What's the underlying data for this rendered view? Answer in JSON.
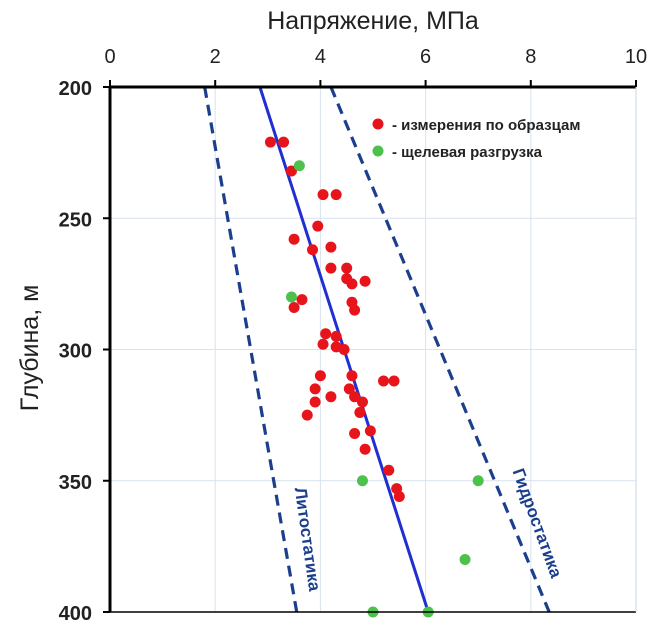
{
  "chart_data": {
    "type": "scatter",
    "xlabel": "Напряжение, МПа",
    "ylabel": "Глубина, м",
    "xlim": [
      0,
      10
    ],
    "ylim": [
      200,
      400
    ],
    "y_inverted": true,
    "x_axis_position": "top",
    "x_ticks": [
      0,
      2,
      4,
      6,
      8,
      10
    ],
    "y_ticks": [
      200,
      250,
      300,
      350,
      400
    ],
    "grid": true,
    "legend_position": "top-right",
    "colors": {
      "red": "#e8141b",
      "green": "#4cc24c",
      "trend": "#1f2fd1",
      "dashed": "#1b3f8c",
      "grid": "#d7e3ee"
    },
    "series": [
      {
        "name": "- измерения по образцам",
        "kind": "points",
        "color": "#e8141b",
        "points": [
          [
            3.05,
            221
          ],
          [
            3.3,
            221
          ],
          [
            3.45,
            232
          ],
          [
            4.05,
            241
          ],
          [
            4.3,
            241
          ],
          [
            3.95,
            253
          ],
          [
            3.5,
            258
          ],
          [
            3.85,
            262
          ],
          [
            4.2,
            261
          ],
          [
            4.2,
            269
          ],
          [
            4.5,
            269
          ],
          [
            4.5,
            273
          ],
          [
            4.6,
            275
          ],
          [
            4.85,
            274
          ],
          [
            3.65,
            281
          ],
          [
            4.6,
            282
          ],
          [
            3.5,
            284
          ],
          [
            4.65,
            285
          ],
          [
            4.1,
            294
          ],
          [
            4.3,
            295
          ],
          [
            4.05,
            298
          ],
          [
            4.3,
            299
          ],
          [
            4.45,
            300
          ],
          [
            4.0,
            310
          ],
          [
            4.6,
            310
          ],
          [
            3.9,
            315
          ],
          [
            4.55,
            315
          ],
          [
            5.2,
            312
          ],
          [
            5.4,
            312
          ],
          [
            4.2,
            318
          ],
          [
            4.65,
            318
          ],
          [
            3.9,
            320
          ],
          [
            4.8,
            320
          ],
          [
            3.75,
            325
          ],
          [
            4.75,
            324
          ],
          [
            4.95,
            331
          ],
          [
            4.65,
            332
          ],
          [
            4.85,
            338
          ],
          [
            5.3,
            346
          ],
          [
            5.45,
            353
          ],
          [
            5.5,
            356
          ]
        ]
      },
      {
        "name": "- щелевая разгрузка",
        "kind": "points",
        "color": "#4cc24c",
        "points": [
          [
            3.6,
            230
          ],
          [
            3.45,
            280
          ],
          [
            4.8,
            350
          ],
          [
            7.0,
            350
          ],
          [
            6.75,
            380
          ],
          [
            5.0,
            400
          ],
          [
            6.05,
            400
          ]
        ]
      },
      {
        "name": "trend",
        "kind": "line",
        "color": "#1f2fd1",
        "points": [
          [
            2.85,
            200
          ],
          [
            6.05,
            400
          ]
        ]
      },
      {
        "name": "Литостатика",
        "kind": "dashed",
        "color": "#1b3f8c",
        "points": [
          [
            1.8,
            200
          ],
          [
            3.55,
            400
          ]
        ]
      },
      {
        "name": "Гидростатика",
        "kind": "dashed",
        "color": "#1b3f8c",
        "points": [
          [
            4.2,
            200
          ],
          [
            8.35,
            400
          ]
        ]
      }
    ],
    "annotations": {
      "lito": "Литостатика",
      "hydro": "Гидростатика"
    }
  }
}
